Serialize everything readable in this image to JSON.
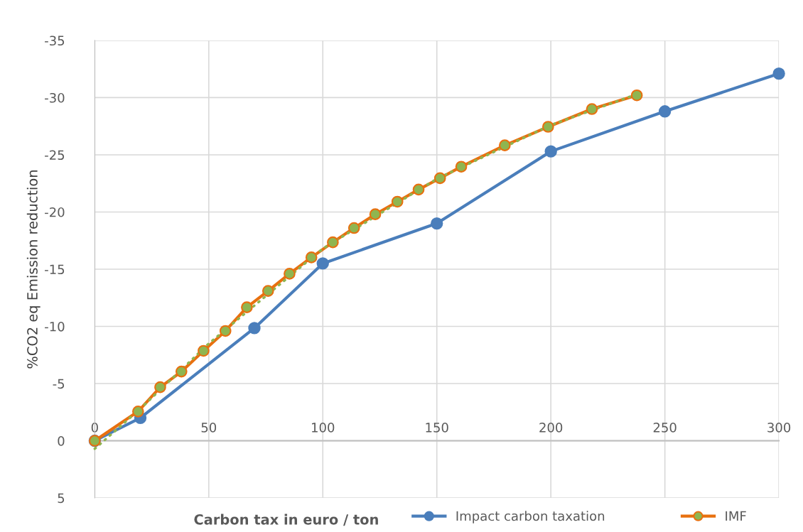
{
  "chart_data": {
    "type": "line",
    "xlabel": "Carbon tax in euro / ton",
    "ylabel": "%CO2 eq Emission reduction",
    "xlim": [
      0,
      300
    ],
    "xticks": [
      0,
      50,
      100,
      150,
      200,
      250,
      300
    ],
    "ylim": [
      5,
      -35
    ],
    "yticks": [
      5,
      0,
      -5,
      -10,
      -15,
      -20,
      -25,
      -30,
      -35
    ],
    "grid": true,
    "legend": "bottom",
    "marker": "circle",
    "series": [
      {
        "name": "Impact carbon taxation",
        "color": "#4a7ebb",
        "x": [
          0,
          20,
          70,
          100,
          150,
          200,
          250,
          300
        ],
        "values": [
          0,
          -2.0,
          -9.85,
          -15.5,
          -19.0,
          -25.3,
          -28.8,
          -32.1
        ]
      },
      {
        "name": "IMF",
        "color": "#e8700f",
        "colors": [
          "#8fb550",
          "#8fb550",
          "#8fb550",
          "#8fb550",
          "#8fb550",
          "#8fb550",
          "#8fb550",
          "#8fb550",
          "#8fb550",
          "#8fb550",
          "#8fb550",
          "#8fb550",
          "#8fb550",
          "#8fb550",
          "#8fb550",
          "#8fb550",
          "#8fb550",
          "#8fb550",
          "#8fb550",
          "#8fb550",
          "#8fb550"
        ],
        "x": [
          0,
          19,
          28.7,
          38,
          47.7,
          57.3,
          66.7,
          76,
          85.4,
          95,
          104.4,
          113.7,
          123,
          132.7,
          142,
          151.4,
          160.7,
          179.8,
          198.8,
          218,
          237.7
        ],
        "values": [
          0,
          -2.56,
          -4.68,
          -6.05,
          -7.86,
          -9.6,
          -11.67,
          -13.1,
          -14.6,
          -16.03,
          -17.35,
          -18.6,
          -19.8,
          -20.9,
          -21.96,
          -22.96,
          -23.96,
          -25.83,
          -27.45,
          -29.0,
          -30.2
        ]
      },
      {
        "color": "#8fb550",
        "marker": "none",
        "line_style": "dotted",
        "x": [
          0,
          20,
          50,
          100,
          150,
          200,
          237.7
        ],
        "values": [
          0.7,
          -2.8,
          -8.5,
          -16.8,
          -22.9,
          -27.6,
          -30.3
        ]
      }
    ]
  }
}
